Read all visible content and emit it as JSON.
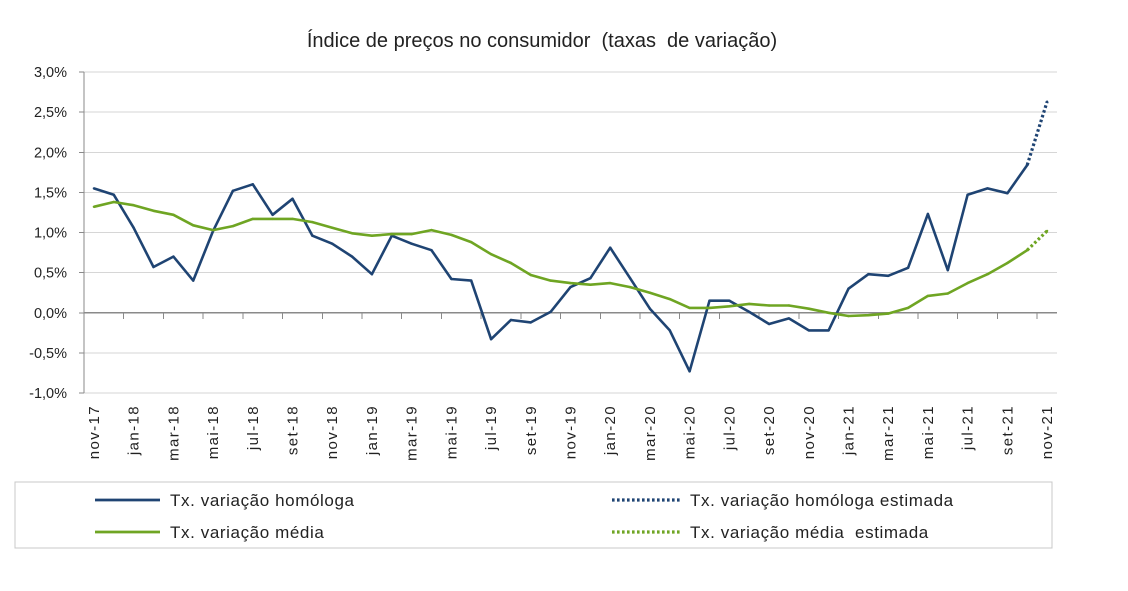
{
  "chart_data": {
    "type": "line",
    "title": "Índice de preços no consumidor  (taxas  de variação)",
    "xlabel": "",
    "ylabel": "",
    "categories": [
      "nov-17",
      "",
      "jan-18",
      "",
      "mar-18",
      "",
      "mai-18",
      "",
      "jul-18",
      "",
      "set-18",
      "",
      "nov-18",
      "",
      "jan-19",
      "",
      "mar-19",
      "",
      "mai-19",
      "",
      "jul-19",
      "",
      "set-19",
      "",
      "nov-19",
      "",
      "jan-20",
      "",
      "mar-20",
      "",
      "mai-20",
      "",
      "jul-20",
      "",
      "set-20",
      "",
      "nov-20",
      "",
      "jan-21",
      "",
      "mar-21",
      "",
      "mai-21",
      "",
      "jul-21",
      "",
      "set-21",
      "",
      "nov-21"
    ],
    "ylim": [
      -1.0,
      3.0
    ],
    "yticks": [
      3.0,
      2.5,
      2.0,
      1.5,
      1.0,
      0.5,
      0.0,
      -0.5,
      -1.0
    ],
    "ytick_labels": [
      "3,0%",
      "2,5%",
      "2,0%",
      "1,5%",
      "1,0%",
      "0,5%",
      "0,0%",
      "-0,5%",
      "-1,0%"
    ],
    "grid": true,
    "legend_position": "bottom",
    "series": [
      {
        "name": "Tx. variação homóloga",
        "color": "#1f4473",
        "line_style": "solid",
        "values": [
          1.55,
          1.47,
          1.06,
          0.57,
          0.7,
          0.4,
          1.02,
          1.52,
          1.6,
          1.22,
          1.42,
          0.96,
          0.86,
          0.7,
          0.48,
          0.96,
          0.86,
          0.78,
          0.42,
          0.4,
          -0.33,
          -0.09,
          -0.12,
          0.01,
          0.32,
          0.43,
          0.81,
          0.43,
          0.05,
          -0.22,
          -0.73,
          0.15,
          0.15,
          0.01,
          -0.14,
          -0.07,
          -0.22,
          -0.22,
          0.3,
          0.48,
          0.46,
          0.56,
          1.23,
          0.53,
          1.47,
          1.55,
          1.49,
          1.84,
          null
        ]
      },
      {
        "name": "Tx. variação homóloga estimada",
        "color": "#1f4473",
        "line_style": "dotted",
        "values": [
          null,
          null,
          null,
          null,
          null,
          null,
          null,
          null,
          null,
          null,
          null,
          null,
          null,
          null,
          null,
          null,
          null,
          null,
          null,
          null,
          null,
          null,
          null,
          null,
          null,
          null,
          null,
          null,
          null,
          null,
          null,
          null,
          null,
          null,
          null,
          null,
          null,
          null,
          null,
          null,
          null,
          null,
          null,
          null,
          null,
          null,
          null,
          1.84,
          2.63
        ]
      },
      {
        "name": "Tx. variação média",
        "color": "#6fa523",
        "line_style": "solid",
        "values": [
          1.32,
          1.38,
          1.34,
          1.27,
          1.22,
          1.09,
          1.03,
          1.08,
          1.17,
          1.17,
          1.17,
          1.13,
          1.06,
          0.99,
          0.96,
          0.98,
          0.98,
          1.03,
          0.97,
          0.88,
          0.73,
          0.62,
          0.47,
          0.4,
          0.37,
          0.35,
          0.37,
          0.32,
          0.25,
          0.17,
          0.06,
          0.06,
          0.08,
          0.11,
          0.09,
          0.09,
          0.05,
          0.0,
          -0.04,
          -0.03,
          -0.01,
          0.06,
          0.21,
          0.24,
          0.37,
          0.48,
          0.62,
          0.78,
          null
        ]
      },
      {
        "name": "Tx. variação média  estimada",
        "color": "#6fa523",
        "line_style": "dotted",
        "values": [
          null,
          null,
          null,
          null,
          null,
          null,
          null,
          null,
          null,
          null,
          null,
          null,
          null,
          null,
          null,
          null,
          null,
          null,
          null,
          null,
          null,
          null,
          null,
          null,
          null,
          null,
          null,
          null,
          null,
          null,
          null,
          null,
          null,
          null,
          null,
          null,
          null,
          null,
          null,
          null,
          null,
          null,
          null,
          null,
          null,
          null,
          null,
          0.78,
          1.02
        ]
      }
    ]
  }
}
